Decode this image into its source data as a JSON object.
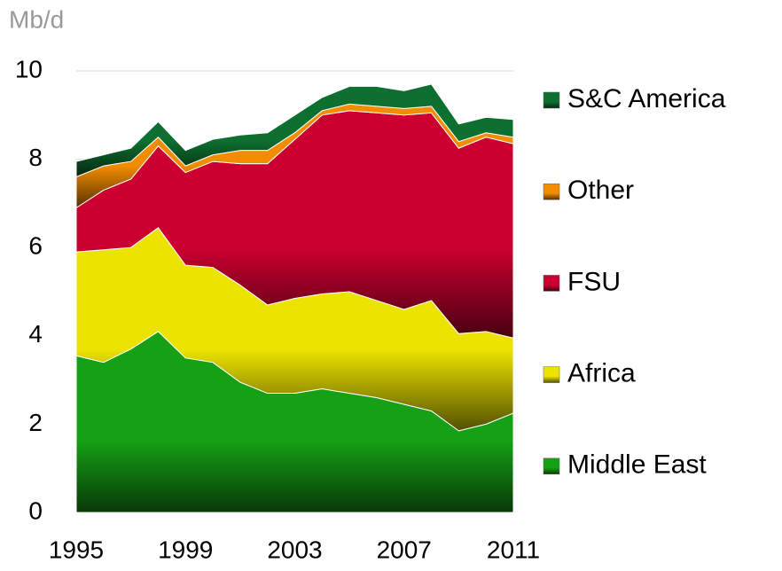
{
  "chart_data": {
    "type": "stacked_area",
    "y_axis_label": "Mb/d",
    "x": [
      1995,
      1996,
      1997,
      1998,
      1999,
      2000,
      2001,
      2002,
      2003,
      2004,
      2005,
      2006,
      2007,
      2008,
      2009,
      2010,
      2011
    ],
    "xlim": [
      1995,
      2011
    ],
    "xticks": [
      1995,
      1999,
      2003,
      2007,
      2011
    ],
    "ylim": [
      0,
      10
    ],
    "yticks": [
      0,
      2,
      4,
      6,
      8,
      10
    ],
    "grid": true,
    "legend": "right",
    "series": [
      {
        "name": "Middle East",
        "color": "#16a016",
        "values": [
          3.55,
          3.4,
          3.7,
          4.1,
          3.5,
          3.4,
          2.95,
          2.7,
          2.7,
          2.8,
          2.7,
          2.6,
          2.45,
          2.3,
          1.85,
          2.0,
          2.25
        ]
      },
      {
        "name": "Africa",
        "color": "#ece400",
        "values": [
          2.35,
          2.55,
          2.3,
          2.35,
          2.1,
          2.15,
          2.2,
          2.0,
          2.15,
          2.15,
          2.3,
          2.2,
          2.15,
          2.5,
          2.2,
          2.1,
          1.7
        ]
      },
      {
        "name": "FSU",
        "color": "#cc0030",
        "values": [
          1.0,
          1.35,
          1.55,
          1.85,
          2.1,
          2.4,
          2.75,
          3.2,
          3.6,
          4.05,
          4.1,
          4.25,
          4.4,
          4.25,
          4.2,
          4.4,
          4.4
        ]
      },
      {
        "name": "Other",
        "color": "#f28c00",
        "values": [
          0.7,
          0.55,
          0.4,
          0.2,
          0.15,
          0.15,
          0.3,
          0.3,
          0.15,
          0.1,
          0.15,
          0.15,
          0.15,
          0.15,
          0.15,
          0.1,
          0.15
        ]
      },
      {
        "name": "S&C America",
        "color": "#0e7030",
        "values": [
          0.35,
          0.25,
          0.3,
          0.35,
          0.35,
          0.35,
          0.35,
          0.4,
          0.4,
          0.3,
          0.4,
          0.45,
          0.4,
          0.5,
          0.4,
          0.35,
          0.4
        ]
      }
    ]
  }
}
